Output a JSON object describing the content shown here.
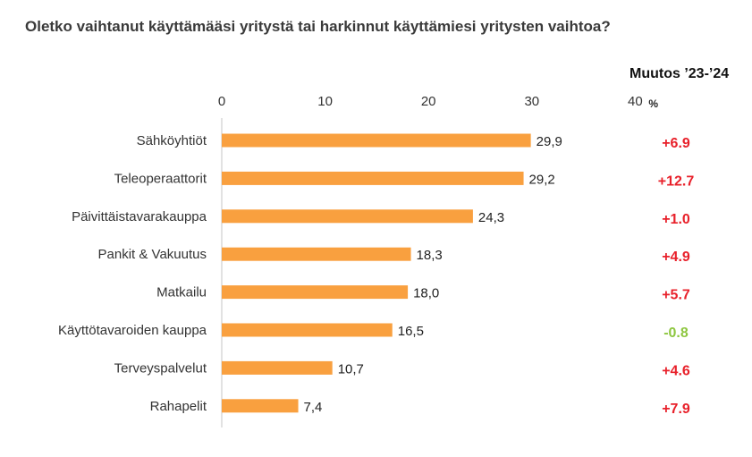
{
  "title": "Oletko vaihtanut käyttämääsi yritystä tai harkinnut käyttämiesi yritysten vaihtoa?",
  "change_header": "Muutos ’23-’24",
  "unit": "%",
  "colors": {
    "bar": "#F9A03F",
    "positive": "#E8202A",
    "negative": "#8DC63F",
    "axis": "#d9d9d9"
  },
  "chart_data": {
    "type": "bar",
    "orientation": "horizontal",
    "title": "Oletko vaihtanut käyttämääsi yritystä tai harkinnut käyttämiesi yritysten vaihtoa?",
    "xlim": [
      0,
      40
    ],
    "ticks": [
      "0",
      "10",
      "20",
      "30",
      "40"
    ],
    "categories": [
      "Sähköyhtiöt",
      "Teleoperaattorit",
      "Päivittäistavarakauppa",
      "Pankit & Vakuutus",
      "Matkailu",
      "Käyttötavaroiden kauppa",
      "Terveyspalvelut",
      "Rahapelit"
    ],
    "values": [
      29.9,
      29.2,
      24.3,
      18.3,
      18.0,
      16.5,
      10.7,
      7.4
    ],
    "value_labels": [
      "29,9",
      "29,2",
      "24,3",
      "18,3",
      "18,0",
      "16,5",
      "10,7",
      "7,4"
    ],
    "changes": [
      "+6.9",
      "+12.7",
      "+1.0",
      "+4.9",
      "+5.7",
      "-0.8",
      "+4.6",
      "+7.9"
    ]
  }
}
